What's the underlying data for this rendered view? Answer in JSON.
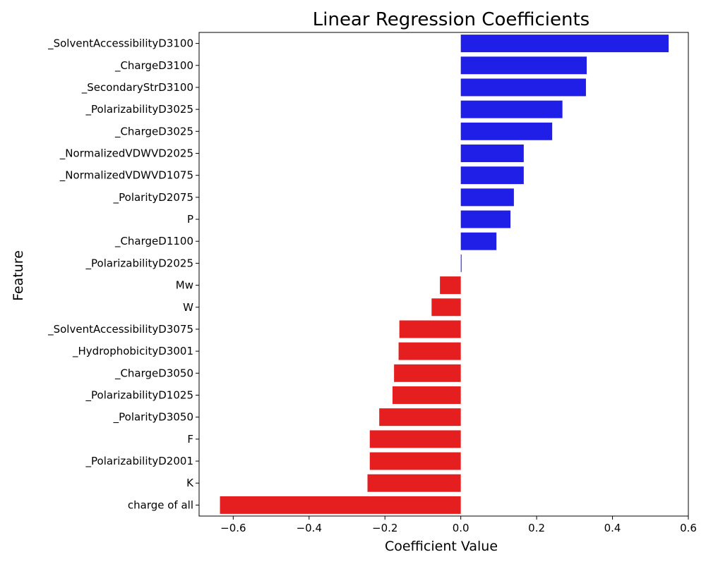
{
  "chart_data": {
    "type": "bar",
    "orientation": "horizontal",
    "title": "Linear Regression Coefficients",
    "xlabel": "Coefficient Value",
    "ylabel": "Feature",
    "xlim": [
      -0.69,
      0.6
    ],
    "xticks": [
      -0.6,
      -0.4,
      -0.2,
      0.0,
      0.2,
      0.4,
      0.6
    ],
    "xtick_labels": [
      "−0.6",
      "−0.4",
      "−0.2",
      "0.0",
      "0.2",
      "0.4",
      "0.6"
    ],
    "grid": false,
    "colors": {
      "positive": "#1f1fe8",
      "negative": "#e51f1f"
    },
    "categories": [
      "_SolventAccessibilityD3100",
      "_ChargeD3100",
      "_SecondaryStrD3100",
      "_PolarizabilityD3025",
      "_ChargeD3025",
      "_NormalizedVDWVD2025",
      "_NormalizedVDWVD1075",
      "_PolarityD2075",
      "P",
      "_ChargeD1100",
      "_PolarizabilityD2025",
      "Mw",
      "W",
      "_SolventAccessibilityD3075",
      "_HydrophobicityD3001",
      "_ChargeD3050",
      "_PolarizabilityD1025",
      "_PolarityD3050",
      "F",
      "_PolarizabilityD2001",
      "K",
      "charge of all"
    ],
    "values": [
      0.548,
      0.332,
      0.33,
      0.268,
      0.241,
      0.166,
      0.166,
      0.14,
      0.131,
      0.094,
      0.002,
      -0.055,
      -0.077,
      -0.162,
      -0.164,
      -0.176,
      -0.18,
      -0.215,
      -0.24,
      -0.24,
      -0.246,
      -0.635
    ]
  }
}
